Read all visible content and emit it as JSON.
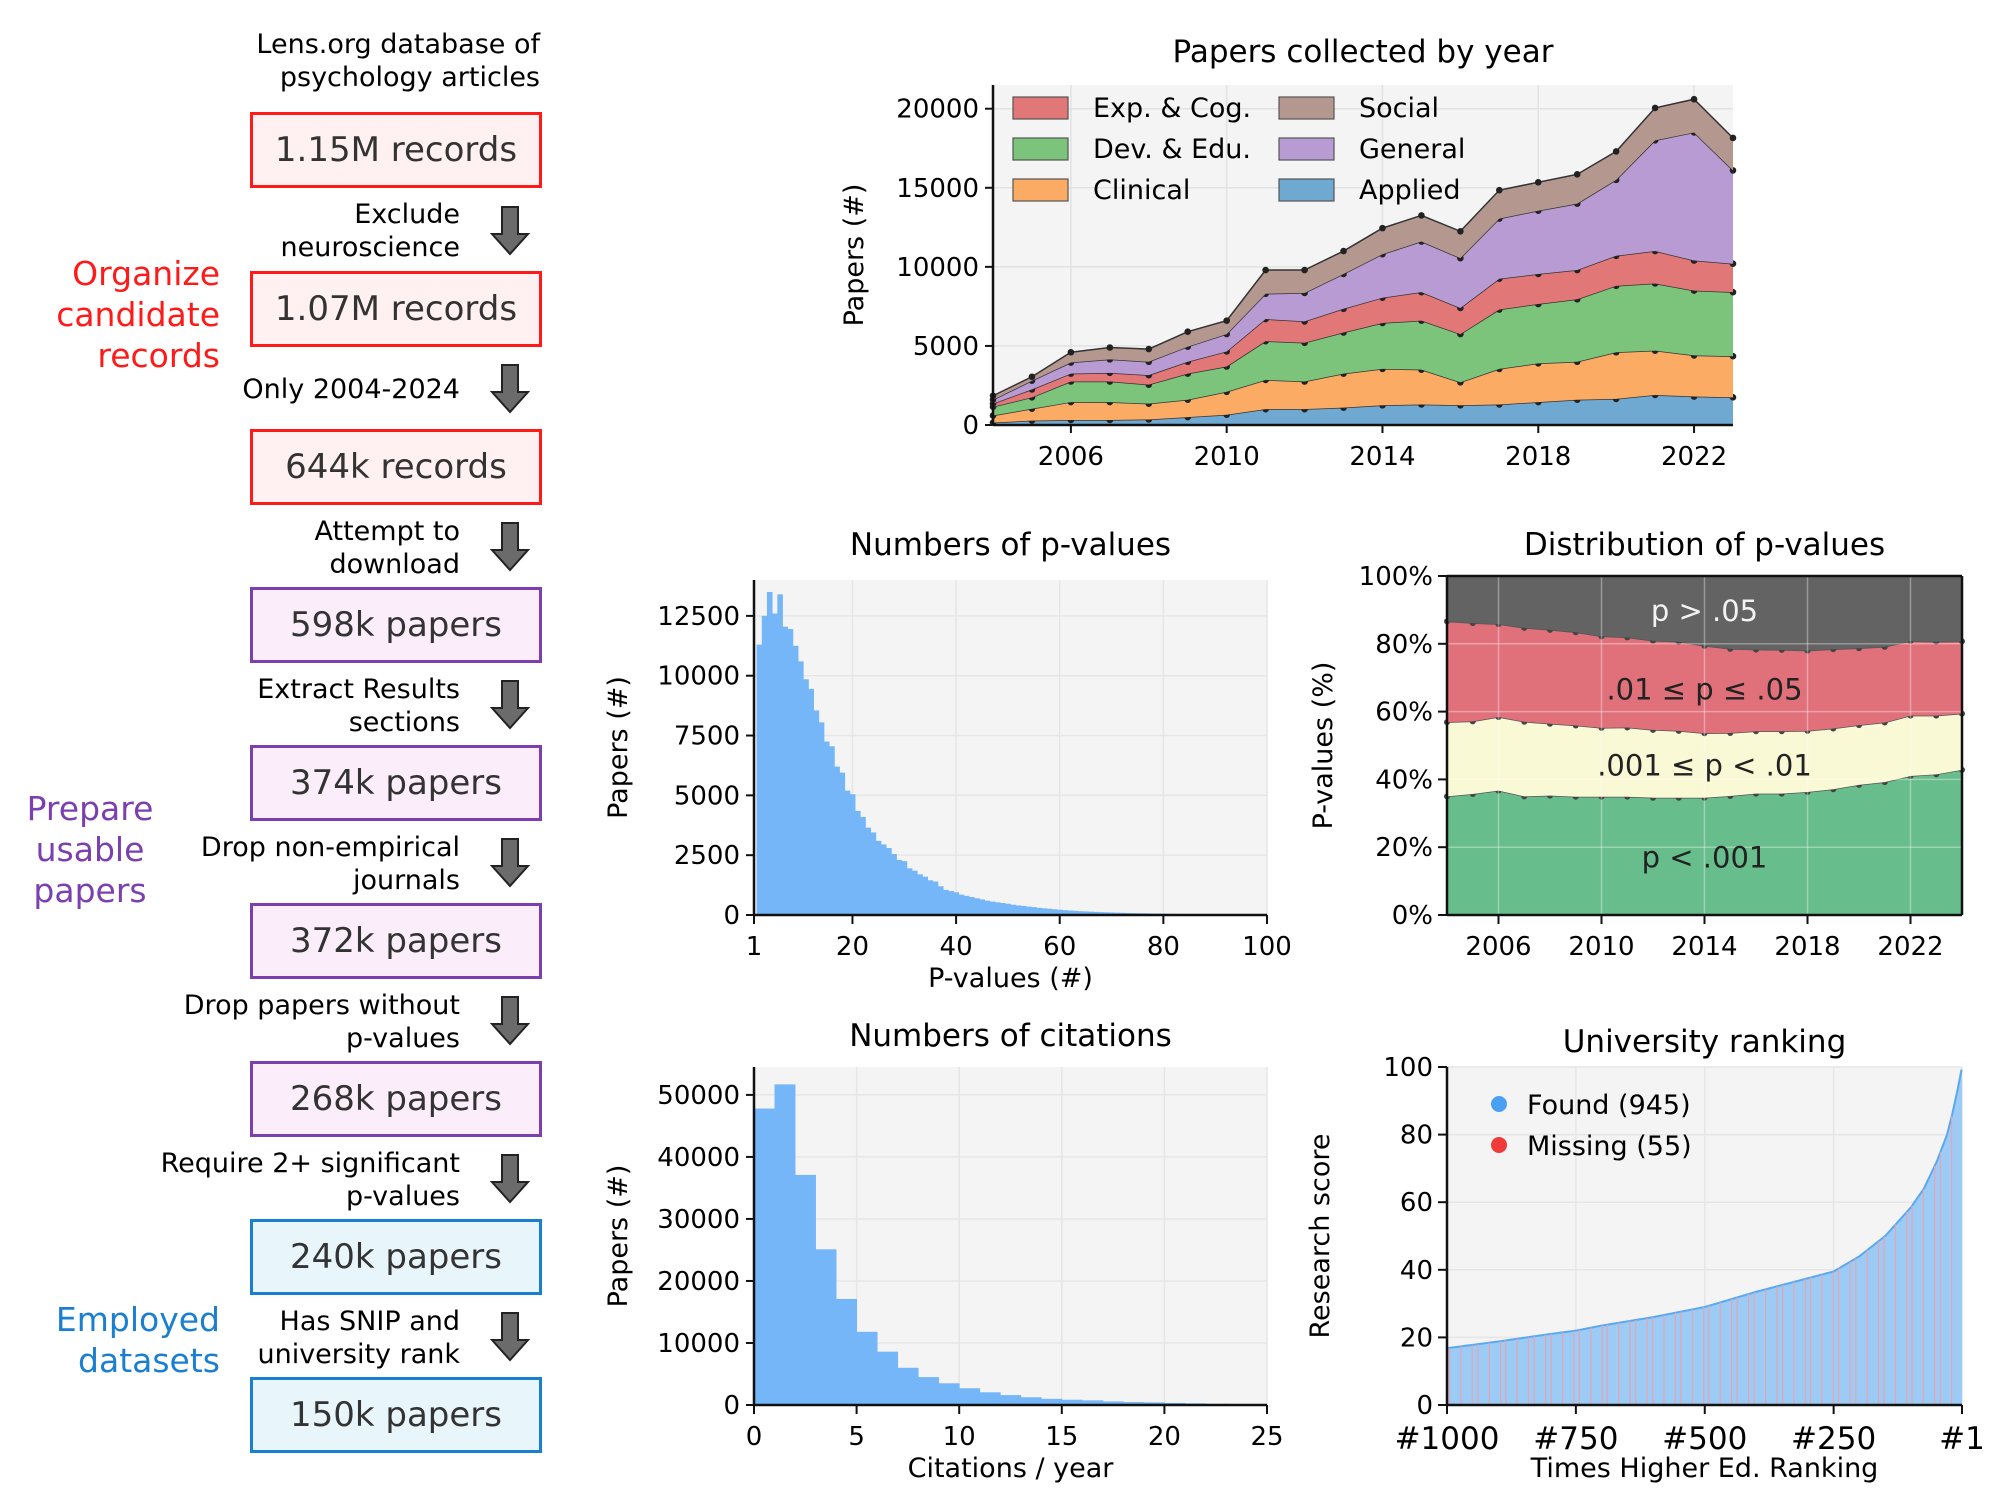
{
  "flowchart": {
    "source": "Lens.org database of\npsychology articles",
    "source_lines": [
      "Lens.org database of",
      "psychology articles"
    ],
    "groups": [
      {
        "lines": [
          "Organize",
          "candidate",
          "records"
        ],
        "color": "#ff1a1a"
      },
      {
        "lines": [
          "Prepare",
          "usable",
          "papers"
        ],
        "color": "#7b3fb0"
      },
      {
        "lines": [
          "Employed",
          "datasets"
        ],
        "color": "#1a7fd1"
      }
    ],
    "boxes": [
      {
        "label": "1.15M records",
        "style": "red"
      },
      {
        "label": "1.07M records",
        "style": "red"
      },
      {
        "label": "644k records",
        "style": "red"
      },
      {
        "label": "598k papers",
        "style": "purple"
      },
      {
        "label": "374k papers",
        "style": "purple"
      },
      {
        "label": "372k papers",
        "style": "purple"
      },
      {
        "label": "268k papers",
        "style": "purple"
      },
      {
        "label": "240k papers",
        "style": "blue"
      },
      {
        "label": "150k papers",
        "style": "blue"
      }
    ],
    "steps": [
      {
        "lines": [
          "Exclude",
          "neuroscience"
        ]
      },
      {
        "lines": [
          "Only 2004-2024"
        ]
      },
      {
        "lines": [
          "Attempt to",
          "download"
        ]
      },
      {
        "lines": [
          "Extract Results",
          "sections"
        ]
      },
      {
        "lines": [
          "Drop non-empirical",
          "journals"
        ]
      },
      {
        "lines": [
          "Drop papers without",
          "p-values"
        ]
      },
      {
        "lines": [
          "Require 2+ significant",
          "p-values"
        ]
      },
      {
        "lines": [
          "Has SNIP and",
          "university rank"
        ]
      }
    ],
    "arrow_icon": "down-arrow-icon"
  },
  "chart_data": [
    {
      "id": "papers-by-year",
      "type": "area",
      "stacked": true,
      "title": "Papers collected by year",
      "xlabel": "",
      "ylabel": "Papers (#)",
      "x": [
        2004,
        2005,
        2006,
        2007,
        2008,
        2009,
        2010,
        2011,
        2012,
        2013,
        2014,
        2015,
        2016,
        2017,
        2018,
        2019,
        2020,
        2021,
        2022,
        2023
      ],
      "xticks": [
        2006,
        2010,
        2014,
        2018,
        2022
      ],
      "xlim": [
        2004,
        2023
      ],
      "ylim": [
        0,
        21500
      ],
      "yticks": [
        0,
        5000,
        10000,
        15000,
        20000
      ],
      "grid": true,
      "legend": "top-left",
      "legend_order": [
        "Exp. & Cog.",
        "Social",
        "Dev. & Edu.",
        "General",
        "Clinical",
        "Applied"
      ],
      "series": [
        {
          "name": "Applied",
          "color": "#6fa8d0",
          "values": [
            150,
            280,
            320,
            320,
            350,
            500,
            650,
            1000,
            1000,
            1100,
            1250,
            1300,
            1250,
            1300,
            1450,
            1600,
            1650,
            1900,
            1800,
            1750
          ]
        },
        {
          "name": "Clinical",
          "color": "#fbab63",
          "values": [
            450,
            750,
            1130,
            1130,
            1000,
            1100,
            1450,
            1850,
            1750,
            2150,
            2300,
            2200,
            1450,
            2250,
            2450,
            2400,
            2950,
            2800,
            2600,
            2600
          ]
        },
        {
          "name": "Dev. & Edu.",
          "color": "#7cc47c",
          "values": [
            550,
            720,
            1300,
            1300,
            1200,
            1650,
            1600,
            2450,
            2450,
            2600,
            2900,
            3100,
            3050,
            3750,
            3750,
            3950,
            4200,
            4250,
            4100,
            4050
          ]
        },
        {
          "name": "Exp. & Cog.",
          "color": "#e27777",
          "values": [
            200,
            500,
            500,
            550,
            600,
            750,
            950,
            1400,
            1350,
            1500,
            1600,
            1800,
            1650,
            1950,
            1900,
            1850,
            1900,
            2050,
            1900,
            1800
          ]
        },
        {
          "name": "General",
          "color": "#b99bd3",
          "values": [
            250,
            550,
            700,
            850,
            850,
            950,
            1100,
            1600,
            1800,
            2200,
            2750,
            3200,
            3150,
            3800,
            4000,
            4200,
            4800,
            7000,
            8100,
            5900
          ]
        },
        {
          "name": "Social",
          "color": "#b49890",
          "values": [
            250,
            250,
            650,
            750,
            800,
            950,
            850,
            1500,
            1450,
            1450,
            1650,
            1650,
            1700,
            1800,
            1800,
            1850,
            1800,
            2050,
            2100,
            2050
          ]
        }
      ]
    },
    {
      "id": "pvalue-counts",
      "type": "bar",
      "histogram": true,
      "title": "Numbers of p-values",
      "xlabel": "P-values (#)",
      "ylabel": "Papers (#)",
      "xlim": [
        1,
        100
      ],
      "ylim": [
        0,
        14000
      ],
      "xticks": [
        1,
        20,
        40,
        60,
        80,
        100
      ],
      "yticks": [
        0,
        2500,
        5000,
        7500,
        10000,
        12500
      ],
      "grid": true,
      "color": "#74b6f7",
      "bin_start": 1.5,
      "bin_width": 1,
      "values": [
        11300,
        12500,
        13500,
        12600,
        13400,
        12050,
        11950,
        11250,
        10600,
        9850,
        9450,
        8550,
        8050,
        7250,
        7050,
        6200,
        5950,
        5200,
        5050,
        4350,
        4100,
        3650,
        3450,
        3100,
        2950,
        2800,
        2550,
        2300,
        2250,
        1950,
        1850,
        1700,
        1600,
        1450,
        1400,
        1200,
        1050,
        1000,
        950,
        850,
        800,
        750,
        700,
        650,
        600,
        560,
        530,
        500,
        470,
        430,
        400,
        380,
        350,
        330,
        300,
        280,
        260,
        240,
        220,
        200,
        190,
        175,
        160,
        150,
        140,
        130,
        120,
        112,
        105,
        98,
        92,
        86,
        80,
        75,
        70,
        65,
        60,
        56,
        52,
        48,
        45,
        42,
        39,
        36,
        33,
        30,
        28,
        26,
        24,
        22,
        20,
        18,
        16,
        14,
        12,
        10,
        9,
        8
      ]
    },
    {
      "id": "pvalue-distribution",
      "type": "area",
      "stacked": true,
      "percent": true,
      "title": "Distribution of p-values",
      "xlabel": "",
      "ylabel": "P-values (%)",
      "x": [
        2004,
        2005,
        2006,
        2007,
        2008,
        2009,
        2010,
        2011,
        2012,
        2013,
        2014,
        2015,
        2016,
        2017,
        2018,
        2019,
        2020,
        2021,
        2022,
        2023,
        2024
      ],
      "xticks": [
        2006,
        2010,
        2014,
        2018,
        2022
      ],
      "xlim": [
        2004,
        2024
      ],
      "ylim": [
        0,
        100
      ],
      "yticks": [
        "0%",
        "20%",
        "40%",
        "60%",
        "80%",
        "100%"
      ],
      "grid": true,
      "series": [
        {
          "name": "p < .001",
          "color": "#67bd8b",
          "label_color": "#222222",
          "values": [
            35.0,
            35.7,
            36.7,
            35.0,
            35.2,
            34.9,
            34.9,
            34.9,
            34.6,
            34.6,
            34.6,
            35.1,
            35.8,
            35.8,
            36.3,
            37.1,
            38.4,
            39.2,
            41.0,
            41.5,
            42.8
          ]
        },
        {
          "name": ".001 ≤ p < .01",
          "color": "#f9f9d6",
          "label_color": "#222222",
          "values": [
            21.9,
            21.4,
            21.7,
            22.0,
            21.2,
            21.0,
            20.3,
            20.4,
            20.0,
            19.7,
            19.0,
            18.6,
            18.4,
            18.4,
            18.0,
            17.9,
            17.6,
            17.6,
            17.8,
            17.3,
            16.6
          ]
        },
        {
          "name": ".01 ≤ p ≤ .05",
          "color": "#e0707a",
          "label_color": "#222222",
          "values": [
            29.7,
            29.0,
            27.4,
            27.7,
            27.7,
            27.5,
            27.0,
            26.6,
            26.3,
            26.3,
            25.8,
            24.8,
            24.1,
            24.0,
            23.7,
            23.4,
            22.7,
            22.3,
            22.0,
            21.8,
            21.3
          ]
        },
        {
          "name": "p > .05",
          "color": "#636363",
          "label_color": "#f2f2f2",
          "values": [
            13.4,
            13.9,
            14.2,
            15.3,
            15.9,
            16.6,
            17.8,
            18.1,
            19.1,
            19.4,
            20.6,
            21.5,
            21.7,
            21.8,
            22.0,
            21.6,
            21.3,
            20.9,
            19.2,
            19.4,
            19.3
          ]
        }
      ]
    },
    {
      "id": "citations",
      "type": "bar",
      "histogram": true,
      "title": "Numbers of citations",
      "xlabel": "Citations / year",
      "ylabel": "Papers (#)",
      "xlim": [
        0,
        25
      ],
      "ylim": [
        0,
        54500
      ],
      "xticks": [
        0,
        5,
        10,
        15,
        20,
        25
      ],
      "yticks": [
        0,
        10000,
        20000,
        30000,
        40000,
        50000
      ],
      "grid": true,
      "color": "#74b6f7",
      "bin_start": 0,
      "bin_width": 1,
      "values": [
        47800,
        51700,
        37100,
        25100,
        17100,
        11800,
        8600,
        6000,
        4500,
        3500,
        2700,
        2050,
        1600,
        1250,
        1000,
        850,
        750,
        580,
        480,
        420,
        330,
        260,
        180,
        120,
        80
      ]
    },
    {
      "id": "university-ranking",
      "type": "bar",
      "title": "University ranking",
      "xlabel": "Times Higher Ed. Ranking",
      "ylabel": "Research score",
      "xlim": [
        1000,
        1
      ],
      "ylim": [
        0,
        100
      ],
      "xticks": [
        "#1000",
        "#750",
        "#500",
        "#250",
        "#1"
      ],
      "yticks": [
        0,
        20,
        40,
        60,
        80,
        100
      ],
      "grid": true,
      "legend": "top-left",
      "legend_entries": [
        {
          "label": "Found (945)",
          "color": "#4a9ff5"
        },
        {
          "label": "Missing (55)",
          "color": "#f03b3b"
        }
      ],
      "found_count": 945,
      "missing_count": 55,
      "curve_rank": [
        1000,
        900,
        800,
        750,
        700,
        600,
        500,
        400,
        300,
        250,
        200,
        150,
        100,
        75,
        50,
        30,
        20,
        10,
        1
      ],
      "curve_score": [
        16.8,
        18.8,
        21.0,
        22.0,
        23.5,
        26.0,
        29.0,
        33.5,
        37.5,
        39.5,
        44.0,
        50.0,
        58.5,
        64.0,
        72.0,
        80.0,
        86.0,
        93.0,
        100
      ]
    }
  ]
}
